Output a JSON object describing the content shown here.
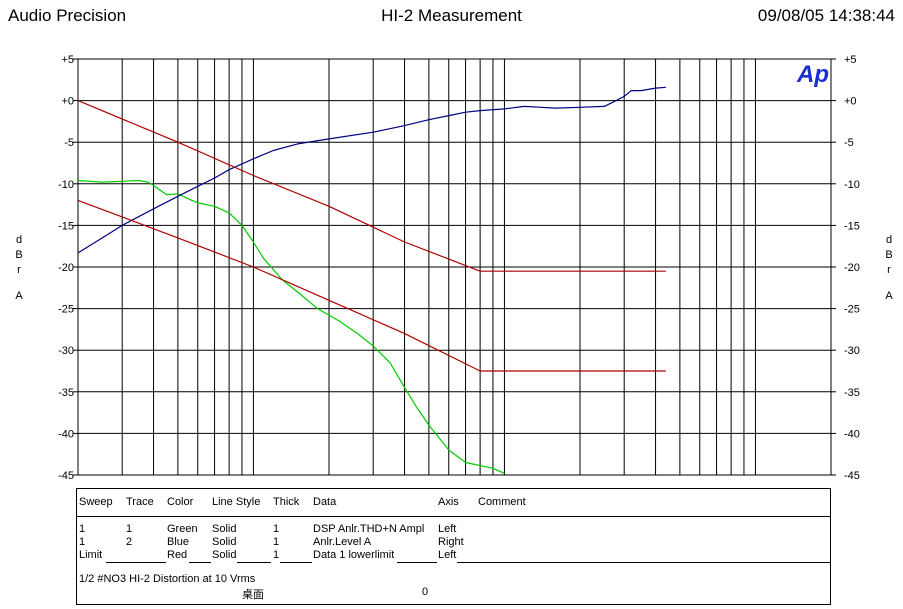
{
  "header": {
    "left": "Audio Precision",
    "center": "HI-2 Measurement",
    "right": "09/08/05 14:38:44"
  },
  "logo_text": "Ap",
  "chart_data": {
    "type": "line",
    "x_scale": "log",
    "x_ticks_printed": false,
    "ylabel": "dBr",
    "ylabel_letters": [
      "d",
      "B",
      "r"
    ],
    "left_axis": {
      "unit": "A",
      "range": [
        -45,
        5
      ],
      "ticks": [
        "+5",
        "+0",
        "-5",
        "-10",
        "-15",
        "-20",
        "-25",
        "-30",
        "-35",
        "-40",
        "-45"
      ]
    },
    "right_axis": {
      "unit": "A",
      "range": [
        -45,
        5
      ],
      "ticks": [
        "+5",
        "+0",
        "-5",
        "-10",
        "-15",
        "-20",
        "-25",
        "-30",
        "-35",
        "-40",
        "-45"
      ]
    },
    "grid": true,
    "x_range": [
      20,
      20000
    ],
    "series": [
      {
        "legend_ref": "Green",
        "color": "#00cc00",
        "axis": "left",
        "points": [
          [
            20,
            -9.6
          ],
          [
            25,
            -9.8
          ],
          [
            30,
            -9.7
          ],
          [
            35,
            -9.6
          ],
          [
            38,
            -9.8
          ],
          [
            40,
            -10.2
          ],
          [
            45,
            -11.3
          ],
          [
            50,
            -11.2
          ],
          [
            55,
            -11.8
          ],
          [
            60,
            -12.3
          ],
          [
            70,
            -12.7
          ],
          [
            80,
            -13.5
          ],
          [
            90,
            -15
          ],
          [
            100,
            -17
          ],
          [
            110,
            -19
          ],
          [
            130,
            -21.5
          ],
          [
            150,
            -23
          ],
          [
            180,
            -25
          ],
          [
            220,
            -26.5
          ],
          [
            260,
            -28
          ],
          [
            300,
            -29.5
          ],
          [
            350,
            -31.5
          ],
          [
            400,
            -34.5
          ],
          [
            450,
            -37
          ],
          [
            500,
            -39
          ],
          [
            600,
            -42
          ],
          [
            700,
            -43.5
          ],
          [
            900,
            -44.2
          ],
          [
            1000,
            -44.8
          ]
        ]
      },
      {
        "legend_ref": "Blue",
        "color": "#000080",
        "axis": "right",
        "points": [
          [
            20,
            -18.3
          ],
          [
            25,
            -16.5
          ],
          [
            30,
            -15
          ],
          [
            40,
            -13
          ],
          [
            50,
            -11.5
          ],
          [
            60,
            -10.3
          ],
          [
            70,
            -9.3
          ],
          [
            80,
            -8.3
          ],
          [
            100,
            -7
          ],
          [
            120,
            -6
          ],
          [
            150,
            -5.2
          ],
          [
            200,
            -4.6
          ],
          [
            300,
            -3.8
          ],
          [
            400,
            -3
          ],
          [
            500,
            -2.3
          ],
          [
            600,
            -1.8
          ],
          [
            700,
            -1.4
          ],
          [
            800,
            -1.2
          ],
          [
            1000,
            -1
          ],
          [
            1200,
            -0.7
          ],
          [
            1400,
            -0.8
          ],
          [
            1600,
            -0.9
          ],
          [
            2000,
            -0.8
          ],
          [
            2500,
            -0.7
          ],
          [
            2700,
            -0.2
          ],
          [
            3000,
            0.5
          ],
          [
            3200,
            1.2
          ],
          [
            3500,
            1.2
          ],
          [
            4000,
            1.5
          ],
          [
            4400,
            1.6
          ]
        ]
      },
      {
        "legend_ref": "Red",
        "color": "#b00000",
        "axis": "left",
        "points": [
          [
            20,
            0
          ],
          [
            50,
            -5
          ],
          [
            100,
            -9
          ],
          [
            200,
            -12.7
          ],
          [
            400,
            -17
          ],
          [
            800,
            -20.5
          ],
          [
            4400,
            -20.5
          ]
        ]
      },
      {
        "legend_ref": "Red",
        "color": "#b00000",
        "axis": "left",
        "points": [
          [
            20,
            -12
          ],
          [
            50,
            -16.5
          ],
          [
            100,
            -20
          ],
          [
            200,
            -24
          ],
          [
            400,
            -28
          ],
          [
            800,
            -32.5
          ],
          [
            4400,
            -32.5
          ]
        ]
      }
    ]
  },
  "legend_table": {
    "headers": [
      "Sweep",
      "Trace",
      "Color",
      "Line Style",
      "Thick",
      "Data",
      "Axis",
      "Comment"
    ],
    "rows": [
      [
        "1",
        "1",
        "Green",
        "Solid",
        "1",
        "DSP Anlr.THD+N Ampl",
        "Left",
        ""
      ],
      [
        "1",
        "2",
        "Blue",
        "Solid",
        "1",
        "Anlr.Level A",
        "Right",
        ""
      ],
      [
        "Limit",
        "",
        "Red",
        "Solid",
        "1",
        "Data 1 lowerlimit",
        "Left",
        ""
      ]
    ],
    "footer": {
      "line1": "1/2 #NO3  HI-2 Distortion at  10 Vrms",
      "line2_label": "桌面",
      "line2_value": "0"
    }
  }
}
